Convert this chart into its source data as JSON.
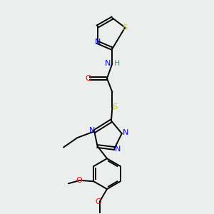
{
  "background_color": "#eceeee",
  "atom_colors": {
    "C": "#000000",
    "N": "#0000ff",
    "O": "#ff0000",
    "S": "#cccc00",
    "H": "#4a8c8c"
  },
  "figsize": [
    3.0,
    3.0
  ],
  "dpi": 100,
  "lw": 1.4,
  "fontsize": 7.5
}
